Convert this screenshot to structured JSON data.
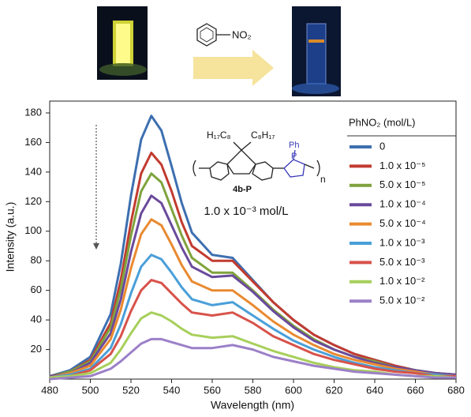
{
  "chart_data": {
    "type": "line",
    "x_label": "Wavelength (nm)",
    "y_label": "Intensity (a.u.)",
    "legend_title": "PhNO₂ (mol/L)",
    "annotation": "1.0 x 10⁻³ mol/L",
    "compound_label": "4b-P",
    "structure_labels": {
      "left_chain": "H₁₇C₈",
      "right_chain": "C₈H₁₇",
      "phenyl": "Ph",
      "phosphorus": "P",
      "repeat": "n"
    },
    "reagent_label": "NO₂",
    "xlim": [
      480,
      680
    ],
    "xticks": [
      480,
      500,
      520,
      540,
      560,
      580,
      600,
      620,
      640,
      660,
      680
    ],
    "ylim": [
      0,
      188
    ],
    "yticks": [
      20,
      40,
      60,
      80,
      100,
      120,
      140,
      160,
      180
    ],
    "grid": false,
    "x": [
      480,
      490,
      500,
      510,
      515,
      520,
      525,
      530,
      535,
      540,
      545,
      550,
      560,
      570,
      580,
      590,
      600,
      610,
      620,
      630,
      640,
      650,
      660,
      670,
      680
    ],
    "series": [
      {
        "name": "0",
        "color": "#3d6fb0",
        "values": [
          2,
          6,
          15,
          44,
          78,
          124,
          162,
          178,
          168,
          144,
          119,
          99,
          84,
          82,
          67,
          52,
          40,
          30,
          23,
          17,
          13,
          9,
          6,
          4,
          3
        ]
      },
      {
        "name": "1.0 x 10⁻⁵",
        "color": "#c23b30",
        "values": [
          2,
          5,
          13,
          38,
          67,
          106,
          139,
          153,
          145,
          127,
          106,
          90,
          80,
          80,
          66,
          52,
          40,
          30,
          23,
          17,
          13,
          9,
          6,
          4,
          3
        ]
      },
      {
        "name": "5.0 x 10⁻⁵",
        "color": "#7fa33d",
        "values": [
          2,
          5,
          12,
          35,
          61,
          97,
          127,
          139,
          133,
          115,
          97,
          82,
          72,
          72,
          60,
          47,
          36,
          27,
          20,
          15,
          12,
          8,
          6,
          4,
          3
        ]
      },
      {
        "name": "1.0 x 10⁻⁴",
        "color": "#6a4a9c",
        "values": [
          2,
          4,
          11,
          31,
          54,
          86,
          112,
          124,
          119,
          104,
          89,
          76,
          69,
          70,
          59,
          46,
          35,
          26,
          20,
          15,
          11,
          8,
          6,
          4,
          3
        ]
      },
      {
        "name": "5.0 x 10⁻⁴",
        "color": "#e98a30",
        "values": [
          1,
          4,
          9,
          27,
          47,
          75,
          98,
          108,
          104,
          91,
          77,
          66,
          60,
          60,
          50,
          39,
          30,
          23,
          17,
          13,
          10,
          7,
          5,
          3,
          2
        ]
      },
      {
        "name": "1.0 x 10⁻³",
        "color": "#4a9fd8",
        "values": [
          1,
          3,
          7,
          21,
          37,
          58,
          76,
          84,
          81,
          72,
          62,
          54,
          50,
          52,
          43,
          34,
          26,
          20,
          15,
          11,
          8,
          6,
          4,
          3,
          2
        ]
      },
      {
        "name": "5.0 x 10⁻³",
        "color": "#d8524a",
        "values": [
          1,
          2,
          6,
          17,
          29,
          46,
          60,
          67,
          65,
          58,
          51,
          45,
          43,
          45,
          38,
          29,
          23,
          17,
          13,
          10,
          7,
          5,
          4,
          2,
          2
        ]
      },
      {
        "name": "1.0 x 10⁻²",
        "color": "#a7cf5b",
        "values": [
          1,
          2,
          4,
          11,
          20,
          31,
          41,
          45,
          43,
          39,
          34,
          30,
          28,
          29,
          24,
          19,
          15,
          11,
          8,
          6,
          5,
          3,
          2,
          2,
          1
        ]
      },
      {
        "name": "5.0 x 10⁻²",
        "color": "#9c80c8",
        "values": [
          0,
          1,
          2,
          7,
          12,
          18,
          24,
          27,
          27,
          25,
          23,
          21,
          21,
          23,
          20,
          15,
          12,
          9,
          7,
          5,
          4,
          3,
          2,
          1,
          1
        ]
      }
    ]
  }
}
